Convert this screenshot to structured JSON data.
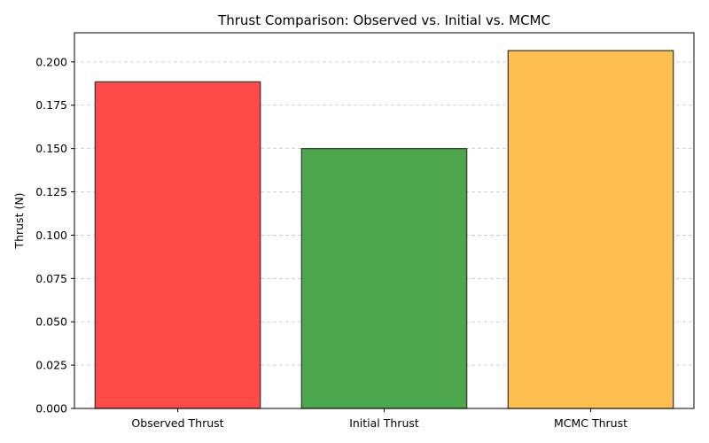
{
  "chart_data": {
    "type": "bar",
    "title": "Thrust Comparison: Observed vs. Initial vs. MCMC",
    "xlabel": "",
    "ylabel": "Thrust (N)",
    "categories": [
      "Observed Thrust",
      "Initial Thrust",
      "MCMC Thrust"
    ],
    "values": [
      0.1885,
      0.15,
      0.2065
    ],
    "colors": [
      "#ff4a4a",
      "#4ca64c",
      "#ffbf50"
    ],
    "edge_color": "#333333",
    "ylim": [
      0,
      0.2168
    ],
    "yticks": [
      0.0,
      0.025,
      0.05,
      0.075,
      0.1,
      0.125,
      0.15,
      0.175,
      0.2
    ],
    "ytick_labels": [
      "0.000",
      "0.025",
      "0.050",
      "0.075",
      "0.100",
      "0.125",
      "0.150",
      "0.175",
      "0.200"
    ],
    "grid": "y-dashed",
    "legend": "none"
  }
}
